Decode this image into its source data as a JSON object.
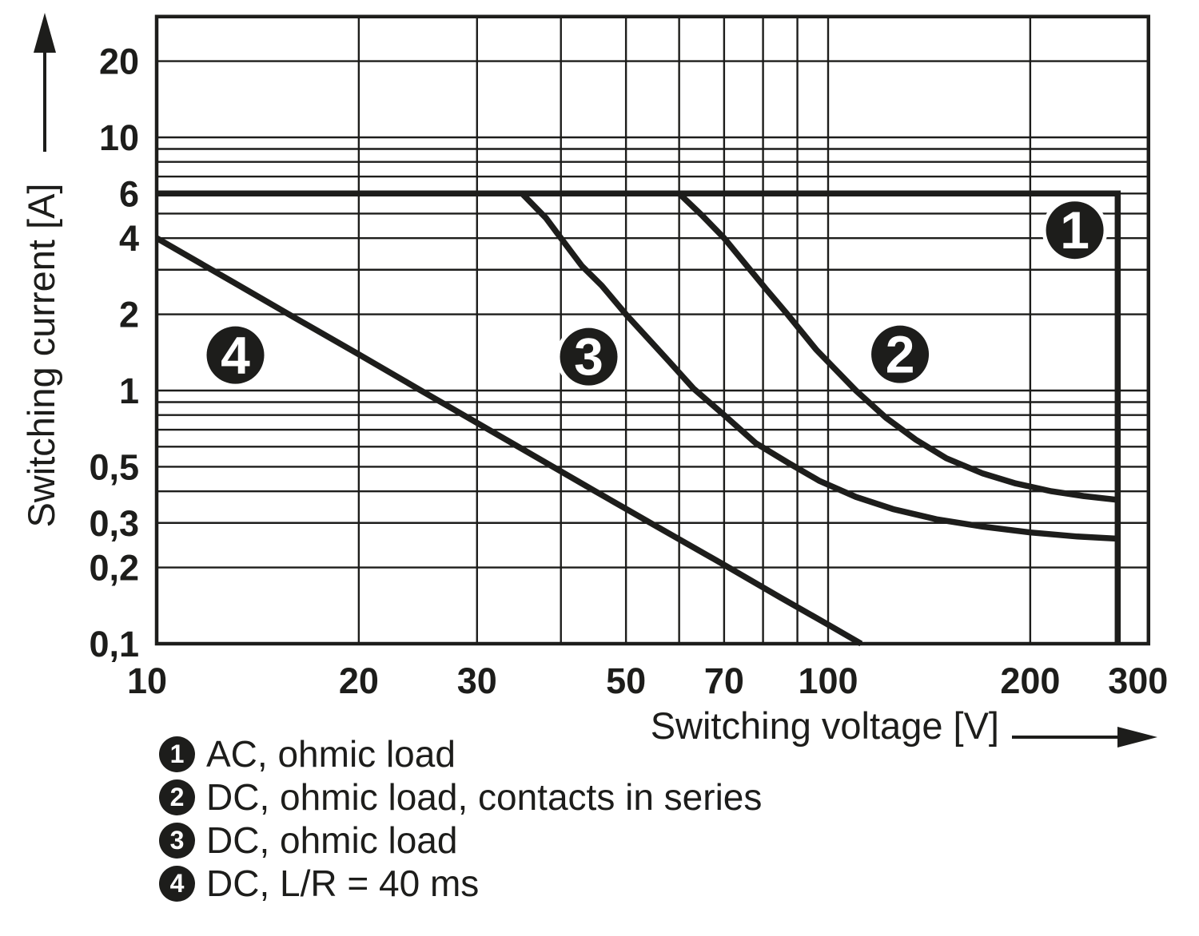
{
  "figure": {
    "background": "#ffffff",
    "ink_color": "#1d1d1b"
  },
  "chart_data": {
    "type": "line",
    "title": "",
    "xlabel": "Switching voltage [V]",
    "ylabel": "Switching current [A]",
    "x_scale": "log",
    "y_scale": "log",
    "xlim": [
      10,
      300
    ],
    "ylim": [
      0.1,
      30
    ],
    "grid": "on",
    "x_gridlines": [
      10,
      20,
      30,
      40,
      50,
      60,
      70,
      80,
      90,
      100,
      200,
      300
    ],
    "y_gridlines": [
      0.1,
      0.2,
      0.3,
      0.4,
      0.5,
      0.6,
      0.7,
      0.8,
      0.9,
      1,
      2,
      3,
      4,
      5,
      6,
      7,
      8,
      9,
      10,
      20,
      30
    ],
    "x_ticks": [
      {
        "value": 10,
        "label": "10"
      },
      {
        "value": 20,
        "label": "20"
      },
      {
        "value": 30,
        "label": "30"
      },
      {
        "value": 50,
        "label": "50"
      },
      {
        "value": 70,
        "label": "70"
      },
      {
        "value": 100,
        "label": "100"
      },
      {
        "value": 200,
        "label": "200"
      },
      {
        "value": 300,
        "label": "300"
      }
    ],
    "y_ticks": [
      {
        "value": 0.1,
        "label": "0,1"
      },
      {
        "value": 0.2,
        "label": "0,2"
      },
      {
        "value": 0.3,
        "label": "0,3"
      },
      {
        "value": 0.5,
        "label": "0,5"
      },
      {
        "value": 1,
        "label": "1"
      },
      {
        "value": 2,
        "label": "2"
      },
      {
        "value": 4,
        "label": "4"
      },
      {
        "value": 6,
        "label": "6"
      },
      {
        "value": 10,
        "label": "10"
      },
      {
        "value": 20,
        "label": "20"
      }
    ],
    "series": [
      {
        "id": "1",
        "name": "AC, ohmic load",
        "points": [
          [
            10,
            6
          ],
          [
            270,
            6
          ],
          [
            270,
            0.1
          ]
        ]
      },
      {
        "id": "2",
        "name": "DC, ohmic load, contacts in series",
        "points": [
          [
            60,
            6
          ],
          [
            65,
            4.9
          ],
          [
            70,
            4.0
          ],
          [
            75,
            3.2
          ],
          [
            81,
            2.5
          ],
          [
            87,
            2.0
          ],
          [
            96,
            1.45
          ],
          [
            110,
            1.0
          ],
          [
            122,
            0.78
          ],
          [
            135,
            0.64
          ],
          [
            150,
            0.54
          ],
          [
            170,
            0.47
          ],
          [
            190,
            0.43
          ],
          [
            215,
            0.4
          ],
          [
            240,
            0.383
          ],
          [
            270,
            0.37
          ]
        ]
      },
      {
        "id": "3",
        "name": "DC, ohmic load",
        "points": [
          [
            35,
            6
          ],
          [
            38,
            4.8
          ],
          [
            40,
            4.0
          ],
          [
            43,
            3.1
          ],
          [
            46,
            2.6
          ],
          [
            50,
            2.0
          ],
          [
            54,
            1.6
          ],
          [
            58,
            1.3
          ],
          [
            63,
            1.02
          ],
          [
            70,
            0.8
          ],
          [
            78,
            0.62
          ],
          [
            87,
            0.52
          ],
          [
            97,
            0.44
          ],
          [
            110,
            0.38
          ],
          [
            125,
            0.34
          ],
          [
            145,
            0.31
          ],
          [
            170,
            0.29
          ],
          [
            200,
            0.275
          ],
          [
            235,
            0.265
          ],
          [
            270,
            0.26
          ]
        ]
      },
      {
        "id": "4",
        "name": "DC, L/R = 40 ms",
        "points": [
          [
            10,
            4
          ],
          [
            13,
            2.68
          ],
          [
            16,
            1.95
          ],
          [
            20,
            1.39
          ],
          [
            25,
            0.985
          ],
          [
            30,
            0.745
          ],
          [
            37,
            0.54
          ],
          [
            45,
            0.4
          ],
          [
            55,
            0.295
          ],
          [
            70,
            0.205
          ],
          [
            85,
            0.152
          ],
          [
            100,
            0.119
          ],
          [
            112,
            0.1
          ]
        ]
      }
    ],
    "curve_markers": [
      {
        "label": "1",
        "v": 233,
        "i": 4.3
      },
      {
        "label": "2",
        "v": 128,
        "i": 1.39
      },
      {
        "label": "3",
        "v": 44,
        "i": 1.36
      },
      {
        "label": "4",
        "v": 13.1,
        "i": 1.38
      }
    ]
  },
  "legend": {
    "items": [
      {
        "num": "1",
        "label": "AC, ohmic load"
      },
      {
        "num": "2",
        "label": "DC, ohmic load, contacts in series"
      },
      {
        "num": "3",
        "label": "DC, ohmic load"
      },
      {
        "num": "4",
        "label": "DC, L/R = 40 ms"
      }
    ]
  }
}
